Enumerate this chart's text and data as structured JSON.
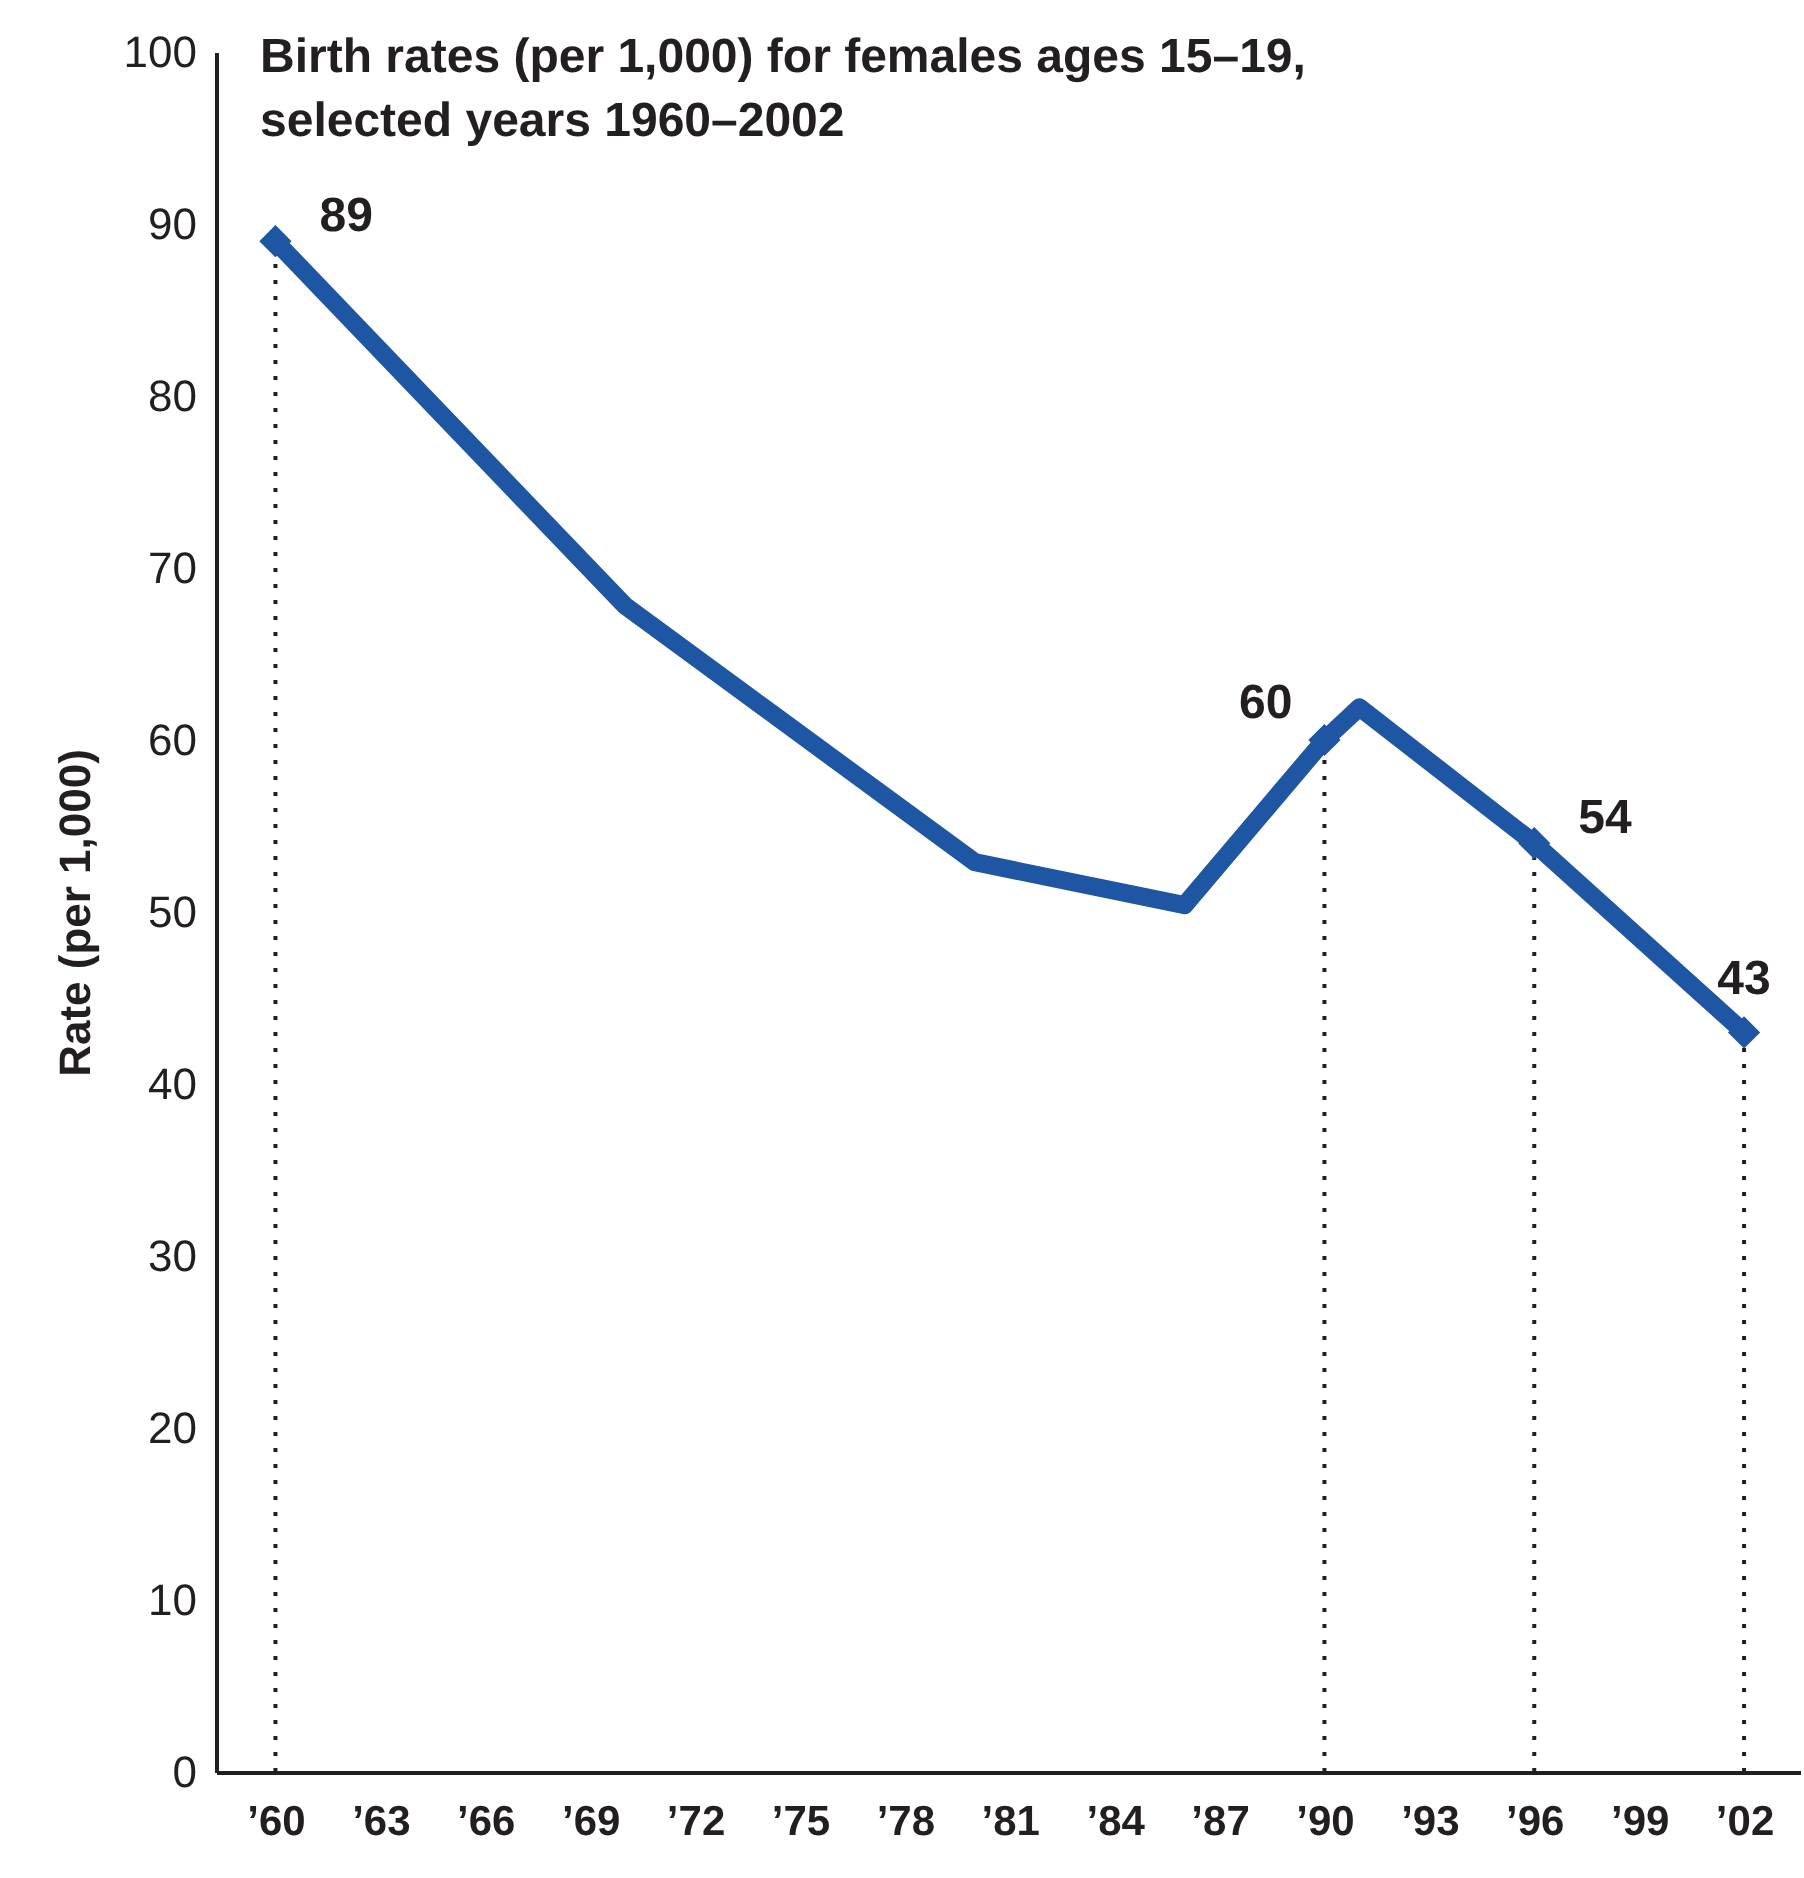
{
  "chart_data": {
    "type": "line",
    "title": "Birth rates (per 1,000) for females ages 15–19, selected years 1960–2002",
    "ylabel": "Rate (per 1,000)",
    "x": [
      1960,
      1970,
      1980,
      1986,
      1990,
      1991,
      1996,
      2002
    ],
    "series": [
      {
        "color": "#1f56a4",
        "values": [
          89,
          67.8,
          52.9,
          50.4,
          60,
          61.9,
          54,
          43
        ],
        "value_labels": [
          "89",
          null,
          null,
          null,
          "60",
          null,
          "54",
          "43"
        ]
      }
    ],
    "marker": "diamond",
    "line_style": "solid",
    "xlim": [
      1958.3,
      2003.6
    ],
    "ylim": [
      0,
      100
    ],
    "xticks": [
      {
        "value": 1960,
        "label": "’60"
      },
      {
        "value": 1963,
        "label": "’63"
      },
      {
        "value": 1966,
        "label": "’66"
      },
      {
        "value": 1969,
        "label": "’69"
      },
      {
        "value": 1972,
        "label": "’72"
      },
      {
        "value": 1975,
        "label": "’75"
      },
      {
        "value": 1978,
        "label": "’78"
      },
      {
        "value": 1981,
        "label": "’81"
      },
      {
        "value": 1984,
        "label": "’84"
      },
      {
        "value": 1987,
        "label": "’87"
      },
      {
        "value": 1990,
        "label": "’90"
      },
      {
        "value": 1993,
        "label": "’93"
      },
      {
        "value": 1996,
        "label": "’96"
      },
      {
        "value": 1999,
        "label": "’99"
      },
      {
        "value": 2002,
        "label": "’02"
      }
    ],
    "yticks": [
      0,
      10,
      20,
      30,
      40,
      50,
      60,
      70,
      80,
      90,
      100
    ]
  }
}
